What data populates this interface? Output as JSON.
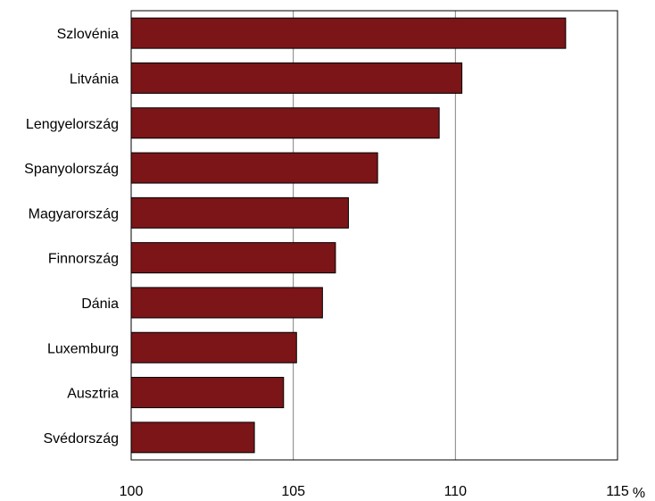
{
  "chart_data": {
    "type": "bar",
    "orientation": "horizontal",
    "categories": [
      "Szlovénia",
      "Litvánia",
      "Lengyelország",
      "Spanyolország",
      "Magyarország",
      "Finnország",
      "Dánia",
      "Luxemburg",
      "Ausztria",
      "Svédország"
    ],
    "values": [
      113.4,
      110.2,
      109.5,
      107.6,
      106.7,
      106.3,
      105.9,
      105.1,
      104.7,
      103.8
    ],
    "title": "",
    "xlabel": "",
    "ylabel": "",
    "x_unit": "%",
    "xlim": [
      100,
      115
    ],
    "xticks": [
      "100",
      "105",
      "110",
      "115"
    ],
    "grid": "vertical",
    "legend": "none",
    "bar_color": "#7b1518",
    "bar_edge_color": "#000000",
    "grid_color": "#808080"
  }
}
